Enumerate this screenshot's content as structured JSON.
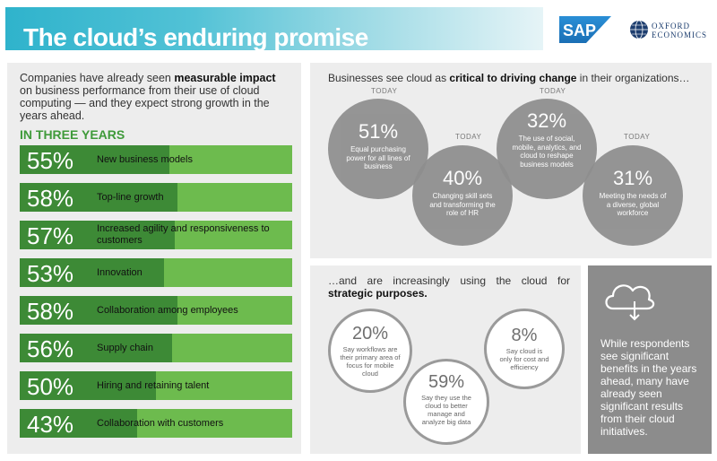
{
  "header": {
    "title": "The cloud’s enduring promise",
    "sap_logo_text": "SAP",
    "oxford_line1": "OXFORD",
    "oxford_line2": "ECONOMICS"
  },
  "left": {
    "intro_part1": "Companies have already seen ",
    "intro_bold": "measurable impact",
    "intro_part2": " on business performance from their use of cloud computing — and they expect strong growth in the years ahead.",
    "section_title": "IN THREE YEARS",
    "bars": [
      {
        "pct_label": "55%",
        "value": 55,
        "label": "New business models"
      },
      {
        "pct_label": "58%",
        "value": 58,
        "label": "Top-line growth"
      },
      {
        "pct_label": "57%",
        "value": 57,
        "label": "Increased agility and responsiveness to customers"
      },
      {
        "pct_label": "53%",
        "value": 53,
        "label": "Innovation"
      },
      {
        "pct_label": "58%",
        "value": 58,
        "label": "Collaboration among employees"
      },
      {
        "pct_label": "56%",
        "value": 56,
        "label": "Supply chain"
      },
      {
        "pct_label": "50%",
        "value": 50,
        "label": "Hiring and retaining talent"
      },
      {
        "pct_label": "43%",
        "value": 43,
        "label": "Collaboration with customers"
      }
    ]
  },
  "right_top": {
    "heading_part1": "Businesses see cloud as ",
    "heading_bold": "critical to driving change",
    "heading_part2": " in their organizations…",
    "today_label": "TODAY",
    "circles": [
      {
        "pct": "51%",
        "text": "Equal purchasing power for all lines of business"
      },
      {
        "pct": "40%",
        "text": "Changing skill sets and transforming the role of HR"
      },
      {
        "pct": "32%",
        "text": "The use of social, mobile, analytics, and cloud to reshape business models"
      },
      {
        "pct": "31%",
        "text": "Meeting the needs of a diverse, global workforce"
      }
    ]
  },
  "right_bottom": {
    "heading_part1": "…and are increasingly using the cloud for ",
    "heading_bold": "strategic purposes.",
    "rings": [
      {
        "pct": "20%",
        "text": "Say workflows are their primary area of focus for mobile cloud"
      },
      {
        "pct": "8%",
        "text": "Say cloud is only for cost and efficiency"
      },
      {
        "pct": "59%",
        "text": "Say they use the cloud to better manage and analyze big data"
      }
    ]
  },
  "callout": {
    "icon": "cloud-download-icon",
    "text": "While respondents see significant benefits in the years ahead, many have already seen significant results from their cloud initiatives."
  },
  "colors": {
    "bar_light": "#6dbb4e",
    "bar_dark": "#3d8a36",
    "accent_green": "#3f9a3a",
    "title_teal": "#2fb3cc",
    "circle_gray": "#8e8e8e"
  }
}
